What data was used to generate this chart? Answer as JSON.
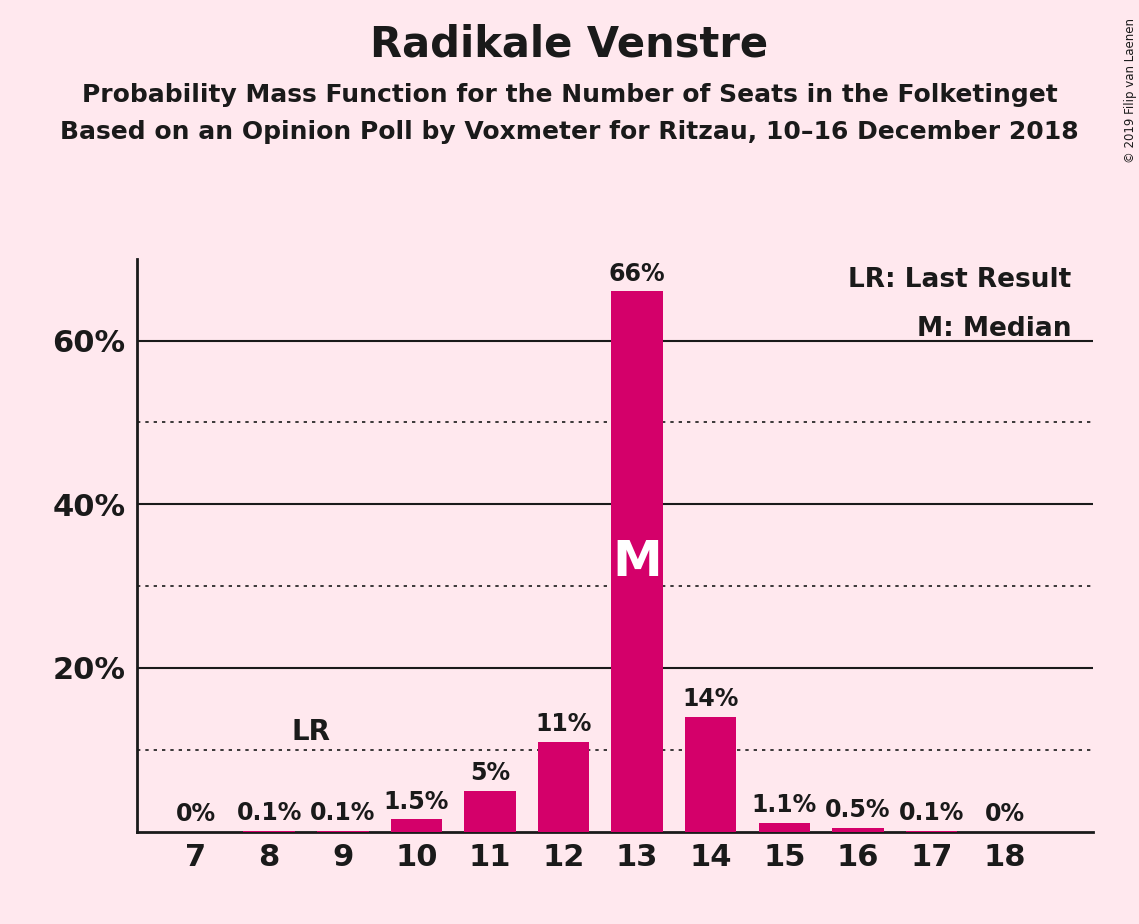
{
  "title": "Radikale Venstre",
  "subtitle1": "Probability Mass Function for the Number of Seats in the Folketinget",
  "subtitle2": "Based on an Opinion Poll by Voxmeter for Ritzau, 10–16 December 2018",
  "copyright": "© 2019 Filip van Laenen",
  "seats": [
    7,
    8,
    9,
    10,
    11,
    12,
    13,
    14,
    15,
    16,
    17,
    18
  ],
  "probabilities": [
    0.0,
    0.1,
    0.1,
    1.5,
    5.0,
    11.0,
    66.0,
    14.0,
    1.1,
    0.5,
    0.1,
    0.0
  ],
  "labels": [
    "0%",
    "0.1%",
    "0.1%",
    "1.5%",
    "5%",
    "11%",
    "66%",
    "14%",
    "1.1%",
    "0.5%",
    "0.1%",
    "0%"
  ],
  "bar_color": "#D4006A",
  "background_color": "#FFE8EE",
  "median_seat": 13,
  "last_result_seat": 8,
  "legend_lr": "LR: Last Result",
  "legend_m": "M: Median",
  "ylim": [
    0,
    70
  ],
  "yticks": [
    20,
    40,
    60
  ],
  "ytick_labels": [
    "20%",
    "40%",
    "60%"
  ],
  "solid_gridlines": [
    20,
    40,
    60
  ],
  "dotted_gridlines": [
    10,
    30,
    50
  ],
  "title_fontsize": 30,
  "subtitle_fontsize": 18,
  "axis_fontsize": 22,
  "label_fontsize": 17,
  "legend_fontsize": 19,
  "M_fontsize": 36
}
